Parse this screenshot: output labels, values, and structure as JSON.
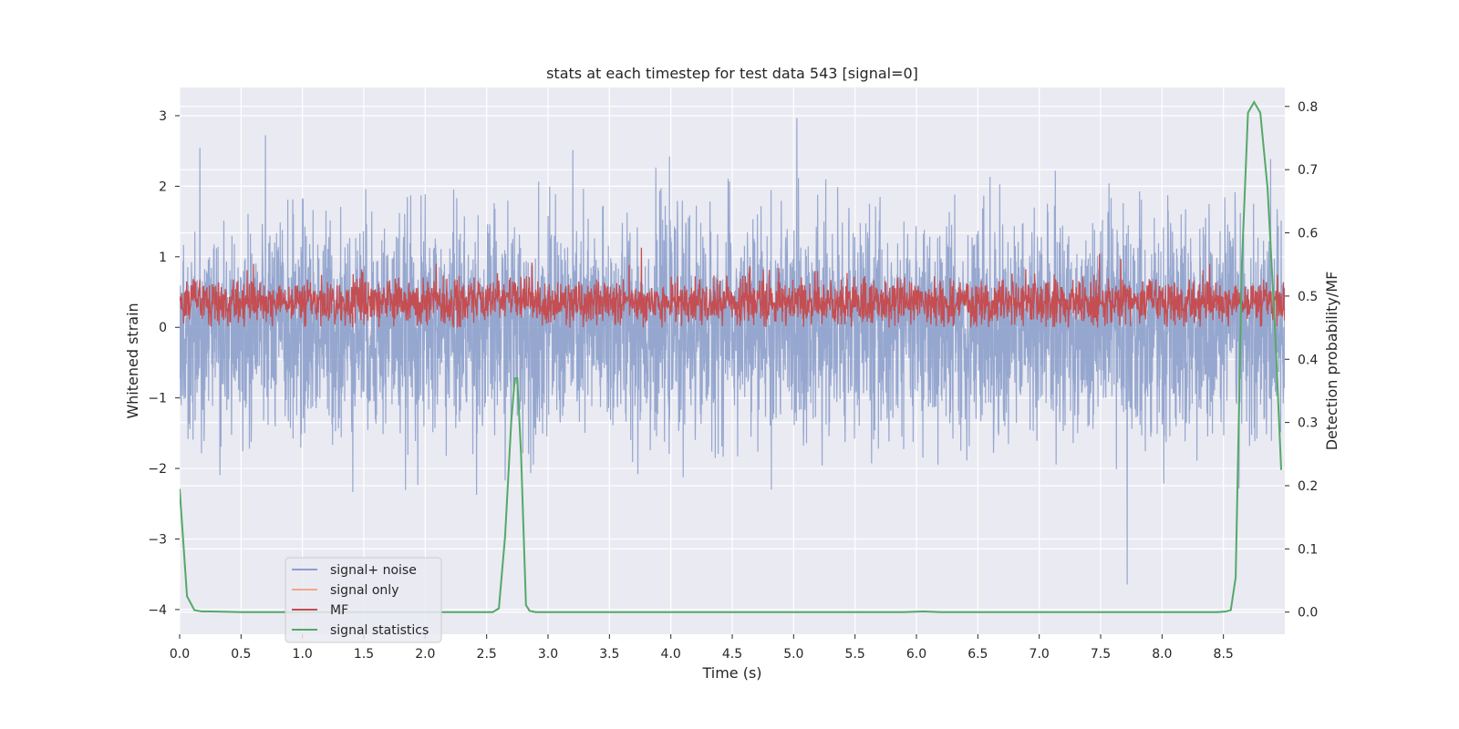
{
  "chart_data": {
    "type": "line",
    "title": "stats at each timestep for test data 543 [signal=0]",
    "xlabel": "Time (s)",
    "ylabel": "Whitened strain",
    "y2label": "Detection probability/MF",
    "xlim": [
      0,
      9
    ],
    "ylim": [
      -4.35,
      3.4
    ],
    "y2lim": [
      -0.035,
      0.83
    ],
    "xticks": [
      "0.0",
      "0.5",
      "1.0",
      "1.5",
      "2.0",
      "2.5",
      "3.0",
      "3.5",
      "4.0",
      "4.5",
      "5.0",
      "5.5",
      "6.0",
      "6.5",
      "7.0",
      "7.5",
      "8.0",
      "8.5"
    ],
    "yticks": [
      "3",
      "2",
      "1",
      "0",
      "−1",
      "−2",
      "−3",
      "−4"
    ],
    "y2ticks": [
      "0.8",
      "0.7",
      "0.6",
      "0.5",
      "0.4",
      "0.3",
      "0.2",
      "0.1",
      "0.0"
    ],
    "grid": true,
    "legend_position": "lower-left",
    "colors": {
      "noise": "#8da0cb",
      "signal": "#f0a88a",
      "mf": "#c44e52",
      "stat": "#55a868",
      "plot_bg": "#eaeaf2",
      "grid": "#ffffff"
    },
    "series": [
      {
        "name": "signal+ noise",
        "axis": "left",
        "description_values": {
          "mean": 0.0,
          "std": 0.8,
          "min": -4.0,
          "max": 3.08
        }
      },
      {
        "name": "signal only",
        "axis": "left",
        "values": []
      },
      {
        "name": "MF",
        "axis": "right",
        "description_values": {
          "baseline": 0.49,
          "min": 0.45,
          "max": 0.58
        }
      },
      {
        "name": "signal statistics",
        "axis": "right",
        "x": [
          0.0,
          0.06,
          0.12,
          0.18,
          0.25,
          0.5,
          1.0,
          1.5,
          2.0,
          2.3,
          2.55,
          2.6,
          2.65,
          2.7,
          2.73,
          2.75,
          2.78,
          2.82,
          2.85,
          2.9,
          3.2,
          4.0,
          5.0,
          5.9,
          6.05,
          6.2,
          7.0,
          8.0,
          8.45,
          8.52,
          8.56,
          8.6,
          8.65,
          8.7,
          8.75,
          8.8,
          8.86,
          8.92,
          8.97
        ],
        "values": [
          0.195,
          0.025,
          0.003,
          0.001,
          0.001,
          0.0,
          0.0,
          0.0,
          0.0,
          0.0,
          0.0,
          0.006,
          0.12,
          0.3,
          0.37,
          0.37,
          0.25,
          0.011,
          0.002,
          0.0,
          0.0,
          0.0,
          0.0,
          0.0,
          0.001,
          0.0,
          0.0,
          0.0,
          0.0,
          0.001,
          0.003,
          0.055,
          0.55,
          0.79,
          0.807,
          0.79,
          0.67,
          0.45,
          0.225
        ]
      }
    ]
  }
}
